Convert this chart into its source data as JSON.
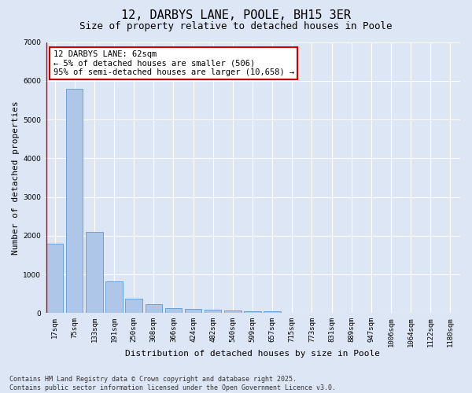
{
  "title_line1": "12, DARBYS LANE, POOLE, BH15 3ER",
  "title_line2": "Size of property relative to detached houses in Poole",
  "xlabel": "Distribution of detached houses by size in Poole",
  "ylabel": "Number of detached properties",
  "categories": [
    "17sqm",
    "75sqm",
    "133sqm",
    "191sqm",
    "250sqm",
    "308sqm",
    "366sqm",
    "424sqm",
    "482sqm",
    "540sqm",
    "599sqm",
    "657sqm",
    "715sqm",
    "773sqm",
    "831sqm",
    "889sqm",
    "947sqm",
    "1006sqm",
    "1064sqm",
    "1122sqm",
    "1180sqm"
  ],
  "values": [
    1800,
    5800,
    2100,
    820,
    380,
    230,
    130,
    105,
    80,
    60,
    50,
    50,
    0,
    0,
    0,
    0,
    0,
    0,
    0,
    0,
    0
  ],
  "bar_color": "#aec6e8",
  "bar_edge_color": "#5b9bd5",
  "annotation_text": "12 DARBYS LANE: 62sqm\n← 5% of detached houses are smaller (506)\n95% of semi-detached houses are larger (10,658) →",
  "annotation_box_color": "#ffffff",
  "annotation_box_edgecolor": "#cc0000",
  "ylim": [
    0,
    7000
  ],
  "yticks": [
    0,
    1000,
    2000,
    3000,
    4000,
    5000,
    6000,
    7000
  ],
  "background_color": "#dce6f5",
  "plot_bg_color": "#dce6f5",
  "grid_color": "#ffffff",
  "vline_color": "#cc0000",
  "footer_line1": "Contains HM Land Registry data © Crown copyright and database right 2025.",
  "footer_line2": "Contains public sector information licensed under the Open Government Licence v3.0.",
  "title_fontsize": 11,
  "subtitle_fontsize": 9,
  "axis_label_fontsize": 8,
  "tick_fontsize": 6.5,
  "annotation_fontsize": 7.5,
  "footer_fontsize": 6
}
